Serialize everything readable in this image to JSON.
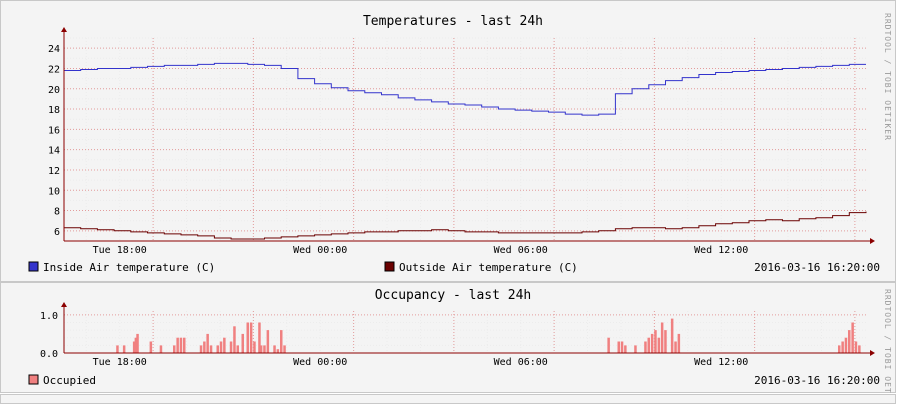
{
  "colors": {
    "inside": "#3333cc",
    "outside": "#6a0000",
    "occupied": "#f08080",
    "axis_arrow": "#8b0000",
    "grid_major": "#e39c9c",
    "grid_minor": "#ececec"
  },
  "watermark": "RRDTOOL / TOBI OETIKER",
  "chart_data": [
    {
      "type": "line",
      "title": "Temperatures - last 24h",
      "x_unit": "hours since Tue 16:20",
      "x_range": [
        0,
        24
      ],
      "xtick_labels": [
        {
          "label": "Tue 18:00",
          "x": 1.667
        },
        {
          "label": "Wed 00:00",
          "x": 7.667
        },
        {
          "label": "Wed 06:00",
          "x": 13.667
        },
        {
          "label": "Wed 12:00",
          "x": 19.667
        }
      ],
      "ylim": [
        5,
        25
      ],
      "yticks": [
        6,
        8,
        10,
        12,
        14,
        16,
        18,
        20,
        22,
        24
      ],
      "grid": true,
      "legend_placement": "bottom-left",
      "timestamp": "2016-03-16 16:20:00",
      "series": [
        {
          "name": "Inside Air temperature (C)",
          "color_key": "inside",
          "x": [
            0,
            0.5,
            1,
            1.5,
            2,
            2.5,
            3,
            3.5,
            4,
            4.5,
            5,
            5.5,
            6,
            6.5,
            7,
            7.5,
            8,
            8.5,
            9,
            9.5,
            10,
            10.5,
            11,
            11.5,
            12,
            12.5,
            13,
            13.5,
            14,
            14.5,
            15,
            15.5,
            16,
            16.5,
            17,
            17.5,
            18,
            18.5,
            19,
            19.5,
            20,
            20.5,
            21,
            21.5,
            22,
            22.5,
            23,
            23.5,
            24
          ],
          "values": [
            21.8,
            21.9,
            22.0,
            22.0,
            22.1,
            22.2,
            22.3,
            22.3,
            22.4,
            22.5,
            22.5,
            22.4,
            22.3,
            22.0,
            21.0,
            20.5,
            20.1,
            19.8,
            19.6,
            19.4,
            19.1,
            18.9,
            18.7,
            18.5,
            18.4,
            18.2,
            18.0,
            17.9,
            17.8,
            17.7,
            17.5,
            17.4,
            17.5,
            19.5,
            20.0,
            20.4,
            20.8,
            21.1,
            21.4,
            21.6,
            21.7,
            21.8,
            21.9,
            22.0,
            22.1,
            22.2,
            22.3,
            22.4,
            22.4
          ]
        },
        {
          "name": "Outside Air temperature (C)",
          "color_key": "outside",
          "x": [
            0,
            0.5,
            1,
            1.5,
            2,
            2.5,
            3,
            3.5,
            4,
            4.5,
            5,
            5.5,
            6,
            6.5,
            7,
            7.5,
            8,
            8.5,
            9,
            9.5,
            10,
            10.5,
            11,
            11.5,
            12,
            12.5,
            13,
            13.5,
            14,
            14.5,
            15,
            15.5,
            16,
            16.5,
            17,
            17.5,
            18,
            18.5,
            19,
            19.5,
            20,
            20.5,
            21,
            21.5,
            22,
            22.5,
            23,
            23.5,
            24
          ],
          "values": [
            6.3,
            6.2,
            6.1,
            6.0,
            5.9,
            5.8,
            5.7,
            5.6,
            5.5,
            5.3,
            5.2,
            5.2,
            5.3,
            5.4,
            5.5,
            5.6,
            5.7,
            5.8,
            5.9,
            5.9,
            6.0,
            6.0,
            6.1,
            6.0,
            5.9,
            5.9,
            5.8,
            5.8,
            5.8,
            5.8,
            5.8,
            5.9,
            6.0,
            6.2,
            6.3,
            6.3,
            6.2,
            6.3,
            6.5,
            6.7,
            6.8,
            7.0,
            7.1,
            7.0,
            7.2,
            7.3,
            7.5,
            7.8,
            7.9
          ]
        }
      ]
    },
    {
      "type": "bar",
      "title": "Occupancy - last 24h",
      "x_unit": "hours since Tue 16:20",
      "x_range": [
        0,
        24
      ],
      "xtick_labels": [
        {
          "label": "Tue 18:00",
          "x": 1.667
        },
        {
          "label": "Wed 00:00",
          "x": 7.667
        },
        {
          "label": "Wed 06:00",
          "x": 13.667
        },
        {
          "label": "Wed 12:00",
          "x": 19.667
        }
      ],
      "ylim": [
        0,
        1.1
      ],
      "yticks": [
        {
          "value": 0,
          "label": "0.0"
        },
        {
          "value": 1,
          "label": "1.0"
        }
      ],
      "grid": true,
      "legend_placement": "bottom-left",
      "timestamp": "2016-03-16 16:20:00",
      "series": [
        {
          "name": "Occupied",
          "color_key": "occupied",
          "x": [
            1.6,
            1.8,
            2.1,
            2.15,
            2.2,
            2.6,
            2.9,
            3.3,
            3.4,
            3.5,
            3.6,
            4.1,
            4.2,
            4.3,
            4.4,
            4.6,
            4.7,
            4.8,
            5.0,
            5.1,
            5.2,
            5.35,
            5.5,
            5.6,
            5.7,
            5.85,
            5.9,
            6.0,
            6.1,
            6.3,
            6.4,
            6.5,
            6.6,
            16.3,
            16.6,
            16.7,
            16.8,
            17.1,
            17.4,
            17.5,
            17.6,
            17.7,
            17.8,
            17.9,
            18.0,
            18.2,
            18.3,
            18.4,
            23.2,
            23.3,
            23.4,
            23.5,
            23.6,
            23.7,
            23.8
          ],
          "values": [
            0.2,
            0.2,
            0.3,
            0.4,
            0.5,
            0.3,
            0.2,
            0.2,
            0.4,
            0.4,
            0.4,
            0.2,
            0.3,
            0.5,
            0.2,
            0.2,
            0.3,
            0.4,
            0.3,
            0.7,
            0.2,
            0.5,
            0.8,
            0.8,
            0.3,
            0.8,
            0.2,
            0.2,
            0.6,
            0.2,
            0.1,
            0.6,
            0.2,
            0.4,
            0.3,
            0.3,
            0.2,
            0.2,
            0.3,
            0.4,
            0.5,
            0.6,
            0.4,
            0.8,
            0.6,
            0.9,
            0.3,
            0.5,
            0.2,
            0.3,
            0.4,
            0.6,
            0.8,
            0.3,
            0.2
          ]
        }
      ]
    }
  ]
}
